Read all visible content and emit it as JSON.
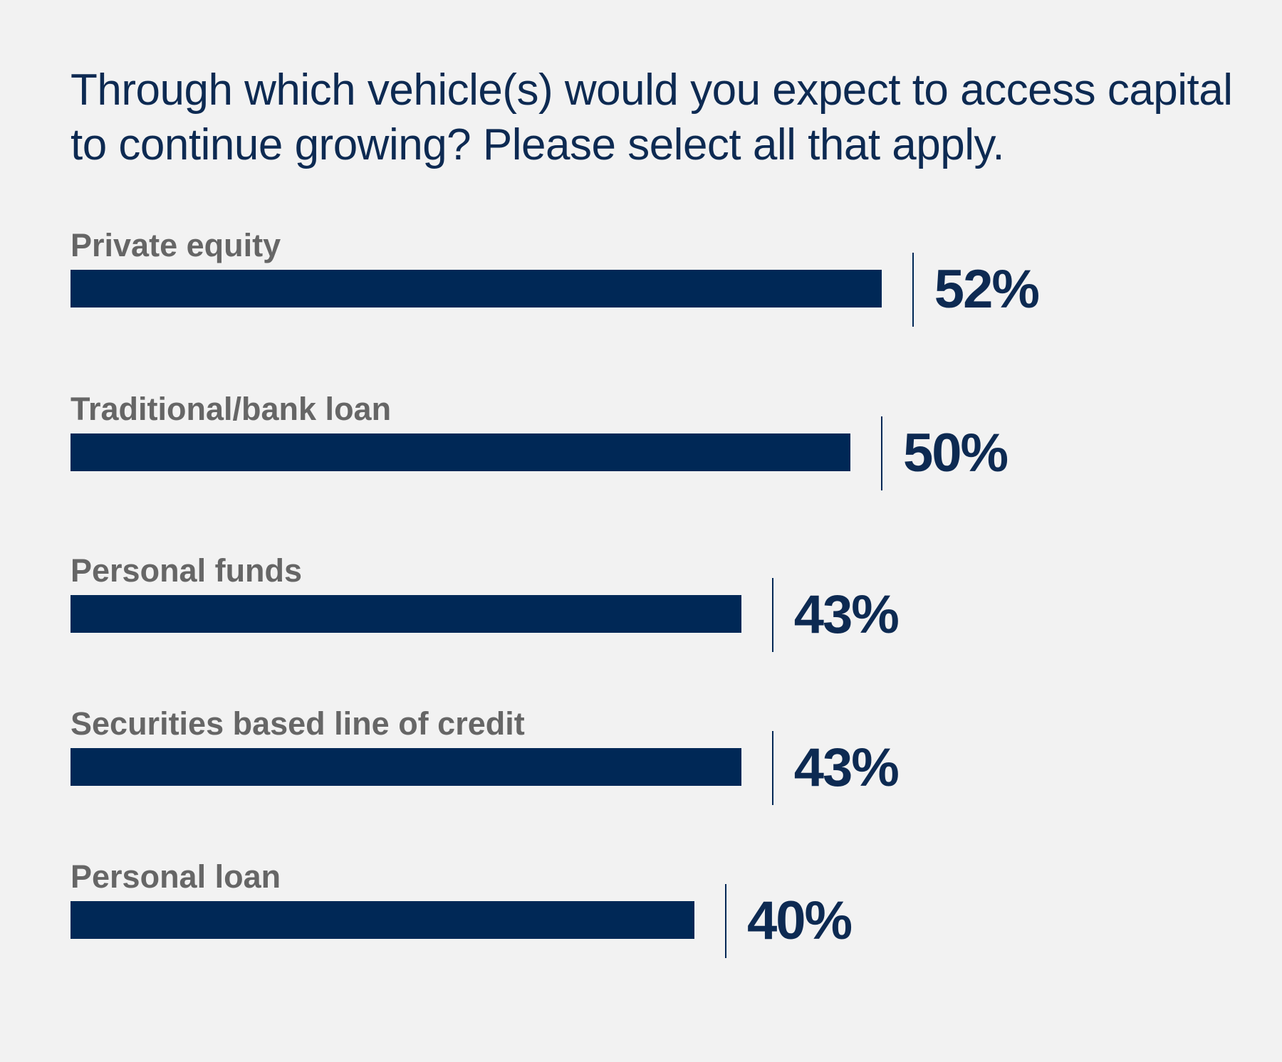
{
  "chart_data": {
    "type": "bar",
    "orientation": "horizontal",
    "title": "Through which vehicle(s) would you expect to access capital to continue growing? Please select all that apply.",
    "categories": [
      "Private equity",
      "Traditional/bank loan",
      "Personal funds",
      "Securities based line of credit",
      "Personal loan"
    ],
    "values": [
      52,
      50,
      43,
      43,
      40
    ],
    "value_labels": [
      "52%",
      "50%",
      "43%",
      "43%",
      "40%"
    ],
    "unit": "%",
    "grid": false,
    "colors": {
      "bar": "#002856",
      "label": "#666666",
      "background": "#f2f2f2"
    }
  }
}
